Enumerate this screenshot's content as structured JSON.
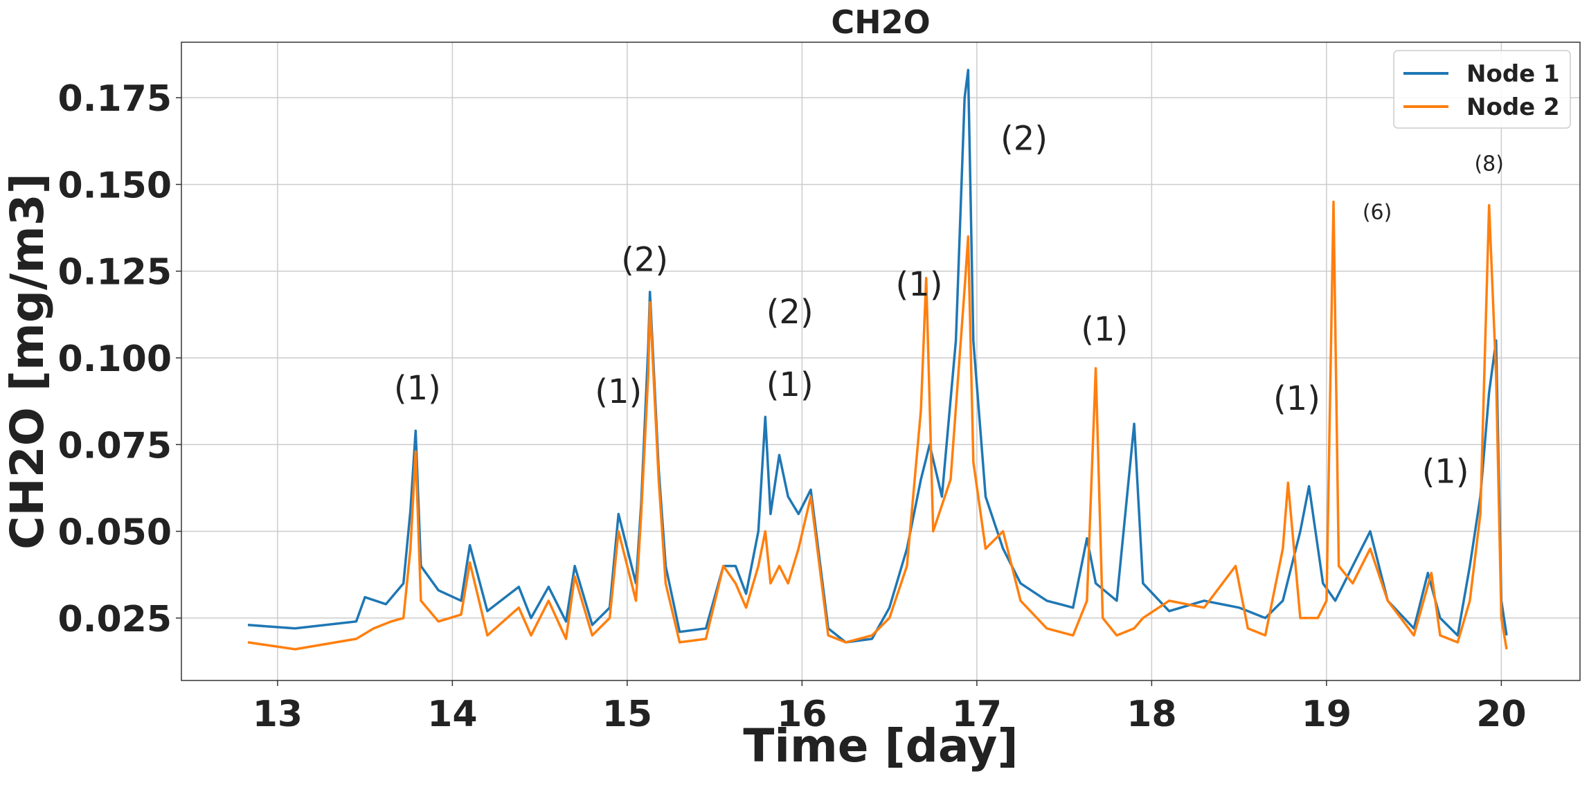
{
  "chart_data": {
    "type": "line",
    "title": "CH2O",
    "xlabel": "Time [day]",
    "ylabel": "CH2O [mg/m3]",
    "xlim": [
      12.45,
      20.45
    ],
    "ylim": [
      0.007,
      0.191
    ],
    "xticks": [
      13,
      14,
      15,
      16,
      17,
      18,
      19,
      20
    ],
    "xtick_labels": [
      "13",
      "14",
      "15",
      "16",
      "17",
      "18",
      "19",
      "20"
    ],
    "yticks": [
      0.025,
      0.05,
      0.075,
      0.1,
      0.125,
      0.15,
      0.175
    ],
    "ytick_labels": [
      "0.025",
      "0.050",
      "0.075",
      "0.100",
      "0.125",
      "0.150",
      "0.175"
    ],
    "grid": true,
    "legend_position": "top-right",
    "series": [
      {
        "name": "Node 1",
        "color": "#1f77b4",
        "points": [
          [
            12.83,
            0.023
          ],
          [
            13.1,
            0.022
          ],
          [
            13.45,
            0.024
          ],
          [
            13.5,
            0.031
          ],
          [
            13.62,
            0.029
          ],
          [
            13.72,
            0.035
          ],
          [
            13.76,
            0.056
          ],
          [
            13.79,
            0.079
          ],
          [
            13.82,
            0.04
          ],
          [
            13.92,
            0.033
          ],
          [
            14.05,
            0.03
          ],
          [
            14.1,
            0.046
          ],
          [
            14.2,
            0.027
          ],
          [
            14.38,
            0.034
          ],
          [
            14.45,
            0.025
          ],
          [
            14.55,
            0.034
          ],
          [
            14.65,
            0.024
          ],
          [
            14.7,
            0.04
          ],
          [
            14.8,
            0.023
          ],
          [
            14.9,
            0.028
          ],
          [
            14.95,
            0.055
          ],
          [
            15.0,
            0.045
          ],
          [
            15.05,
            0.035
          ],
          [
            15.08,
            0.058
          ],
          [
            15.12,
            0.103
          ],
          [
            15.13,
            0.119
          ],
          [
            15.18,
            0.068
          ],
          [
            15.22,
            0.04
          ],
          [
            15.3,
            0.021
          ],
          [
            15.45,
            0.022
          ],
          [
            15.55,
            0.04
          ],
          [
            15.62,
            0.04
          ],
          [
            15.68,
            0.032
          ],
          [
            15.75,
            0.05
          ],
          [
            15.79,
            0.083
          ],
          [
            15.82,
            0.055
          ],
          [
            15.87,
            0.072
          ],
          [
            15.92,
            0.06
          ],
          [
            15.98,
            0.055
          ],
          [
            16.05,
            0.062
          ],
          [
            16.15,
            0.022
          ],
          [
            16.25,
            0.018
          ],
          [
            16.4,
            0.019
          ],
          [
            16.5,
            0.028
          ],
          [
            16.6,
            0.045
          ],
          [
            16.68,
            0.065
          ],
          [
            16.73,
            0.075
          ],
          [
            16.8,
            0.06
          ],
          [
            16.88,
            0.105
          ],
          [
            16.93,
            0.175
          ],
          [
            16.95,
            0.183
          ],
          [
            16.98,
            0.105
          ],
          [
            17.05,
            0.06
          ],
          [
            17.15,
            0.045
          ],
          [
            17.25,
            0.035
          ],
          [
            17.4,
            0.03
          ],
          [
            17.55,
            0.028
          ],
          [
            17.63,
            0.048
          ],
          [
            17.68,
            0.035
          ],
          [
            17.8,
            0.03
          ],
          [
            17.9,
            0.081
          ],
          [
            17.95,
            0.035
          ],
          [
            18.1,
            0.027
          ],
          [
            18.3,
            0.03
          ],
          [
            18.5,
            0.028
          ],
          [
            18.65,
            0.025
          ],
          [
            18.75,
            0.03
          ],
          [
            18.85,
            0.05
          ],
          [
            18.9,
            0.063
          ],
          [
            18.98,
            0.035
          ],
          [
            19.05,
            0.03
          ],
          [
            19.15,
            0.04
          ],
          [
            19.25,
            0.05
          ],
          [
            19.35,
            0.03
          ],
          [
            19.5,
            0.022
          ],
          [
            19.58,
            0.038
          ],
          [
            19.65,
            0.025
          ],
          [
            19.75,
            0.02
          ],
          [
            19.82,
            0.04
          ],
          [
            19.88,
            0.06
          ],
          [
            19.93,
            0.09
          ],
          [
            19.97,
            0.105
          ],
          [
            20.0,
            0.03
          ],
          [
            20.03,
            0.02
          ]
        ]
      },
      {
        "name": "Node 2",
        "color": "#ff7f0e",
        "points": [
          [
            12.83,
            0.018
          ],
          [
            13.1,
            0.016
          ],
          [
            13.45,
            0.019
          ],
          [
            13.55,
            0.022
          ],
          [
            13.65,
            0.024
          ],
          [
            13.72,
            0.025
          ],
          [
            13.76,
            0.045
          ],
          [
            13.79,
            0.073
          ],
          [
            13.82,
            0.03
          ],
          [
            13.92,
            0.024
          ],
          [
            14.05,
            0.026
          ],
          [
            14.1,
            0.041
          ],
          [
            14.2,
            0.02
          ],
          [
            14.38,
            0.028
          ],
          [
            14.45,
            0.02
          ],
          [
            14.55,
            0.03
          ],
          [
            14.65,
            0.019
          ],
          [
            14.7,
            0.037
          ],
          [
            14.8,
            0.02
          ],
          [
            14.9,
            0.025
          ],
          [
            14.95,
            0.05
          ],
          [
            15.0,
            0.04
          ],
          [
            15.05,
            0.03
          ],
          [
            15.08,
            0.055
          ],
          [
            15.12,
            0.095
          ],
          [
            15.13,
            0.116
          ],
          [
            15.18,
            0.065
          ],
          [
            15.22,
            0.035
          ],
          [
            15.3,
            0.018
          ],
          [
            15.45,
            0.019
          ],
          [
            15.55,
            0.04
          ],
          [
            15.62,
            0.035
          ],
          [
            15.68,
            0.028
          ],
          [
            15.75,
            0.04
          ],
          [
            15.79,
            0.05
          ],
          [
            15.82,
            0.035
          ],
          [
            15.87,
            0.04
          ],
          [
            15.92,
            0.035
          ],
          [
            15.98,
            0.045
          ],
          [
            16.05,
            0.06
          ],
          [
            16.15,
            0.02
          ],
          [
            16.25,
            0.018
          ],
          [
            16.4,
            0.02
          ],
          [
            16.5,
            0.025
          ],
          [
            16.6,
            0.04
          ],
          [
            16.68,
            0.085
          ],
          [
            16.71,
            0.123
          ],
          [
            16.75,
            0.05
          ],
          [
            16.85,
            0.065
          ],
          [
            16.93,
            0.12
          ],
          [
            16.95,
            0.135
          ],
          [
            16.98,
            0.07
          ],
          [
            17.05,
            0.045
          ],
          [
            17.15,
            0.05
          ],
          [
            17.25,
            0.03
          ],
          [
            17.4,
            0.022
          ],
          [
            17.55,
            0.02
          ],
          [
            17.63,
            0.03
          ],
          [
            17.68,
            0.097
          ],
          [
            17.72,
            0.025
          ],
          [
            17.8,
            0.02
          ],
          [
            17.9,
            0.022
          ],
          [
            17.95,
            0.025
          ],
          [
            18.1,
            0.03
          ],
          [
            18.3,
            0.028
          ],
          [
            18.48,
            0.04
          ],
          [
            18.55,
            0.022
          ],
          [
            18.65,
            0.02
          ],
          [
            18.75,
            0.045
          ],
          [
            18.78,
            0.064
          ],
          [
            18.85,
            0.025
          ],
          [
            18.95,
            0.025
          ],
          [
            19.0,
            0.03
          ],
          [
            19.04,
            0.145
          ],
          [
            19.07,
            0.04
          ],
          [
            19.15,
            0.035
          ],
          [
            19.25,
            0.045
          ],
          [
            19.35,
            0.03
          ],
          [
            19.5,
            0.02
          ],
          [
            19.6,
            0.038
          ],
          [
            19.65,
            0.02
          ],
          [
            19.75,
            0.018
          ],
          [
            19.82,
            0.03
          ],
          [
            19.88,
            0.055
          ],
          [
            19.93,
            0.144
          ],
          [
            19.97,
            0.095
          ],
          [
            20.0,
            0.025
          ],
          [
            20.03,
            0.016
          ]
        ]
      }
    ],
    "annotations": [
      {
        "text": "(1)",
        "x": 13.8,
        "y": 0.088,
        "size": "large"
      },
      {
        "text": "(2)",
        "x": 15.1,
        "y": 0.125,
        "size": "large"
      },
      {
        "text": "(1)",
        "x": 14.95,
        "y": 0.087,
        "size": "large"
      },
      {
        "text": "(2)",
        "x": 15.93,
        "y": 0.11,
        "size": "large"
      },
      {
        "text": "(1)",
        "x": 15.93,
        "y": 0.089,
        "size": "large"
      },
      {
        "text": "(1)",
        "x": 16.67,
        "y": 0.118,
        "size": "large"
      },
      {
        "text": "(2)",
        "x": 17.27,
        "y": 0.16,
        "size": "large"
      },
      {
        "text": "(1)",
        "x": 17.73,
        "y": 0.105,
        "size": "large"
      },
      {
        "text": "(1)",
        "x": 18.83,
        "y": 0.085,
        "size": "large"
      },
      {
        "text": "(6)",
        "x": 19.29,
        "y": 0.14,
        "size": "small"
      },
      {
        "text": "(8)",
        "x": 19.93,
        "y": 0.154,
        "size": "small"
      },
      {
        "text": "(1)",
        "x": 19.68,
        "y": 0.064,
        "size": "large"
      }
    ]
  }
}
